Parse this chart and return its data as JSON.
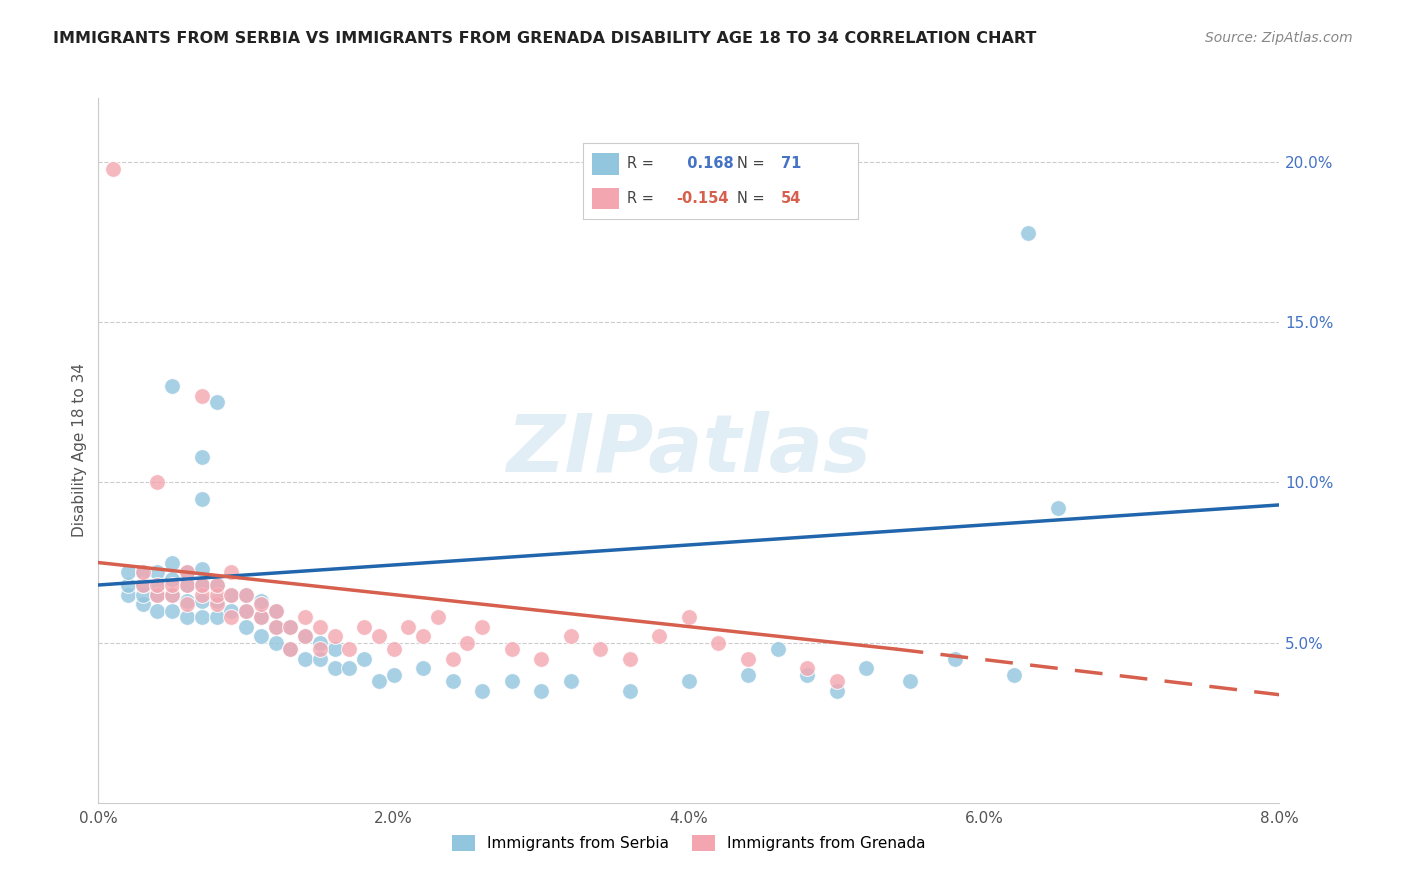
{
  "title": "IMMIGRANTS FROM SERBIA VS IMMIGRANTS FROM GRENADA DISABILITY AGE 18 TO 34 CORRELATION CHART",
  "source": "Source: ZipAtlas.com",
  "ylabel": "Disability Age 18 to 34",
  "xlim": [
    0.0,
    0.08
  ],
  "ylim": [
    0.0,
    0.22
  ],
  "x_tick_labels": [
    "0.0%",
    "2.0%",
    "4.0%",
    "6.0%",
    "8.0%"
  ],
  "x_tick_vals": [
    0.0,
    0.02,
    0.04,
    0.06,
    0.08
  ],
  "y_tick_labels": [
    "5.0%",
    "10.0%",
    "15.0%",
    "20.0%"
  ],
  "y_tick_vals": [
    0.05,
    0.1,
    0.15,
    0.2
  ],
  "serbia_color": "#92c5de",
  "grenada_color": "#f4a6b0",
  "serbia_R": 0.168,
  "serbia_N": 71,
  "grenada_R": -0.154,
  "grenada_N": 54,
  "serbia_line_color": "#2166ac",
  "grenada_line_color": "#d6604d",
  "serbia_line_solid_end": 0.065,
  "grenada_line_solid_end": 0.054,
  "serbia_scatter": [
    [
      0.002,
      0.065
    ],
    [
      0.002,
      0.068
    ],
    [
      0.002,
      0.072
    ],
    [
      0.003,
      0.062
    ],
    [
      0.003,
      0.065
    ],
    [
      0.003,
      0.068
    ],
    [
      0.003,
      0.072
    ],
    [
      0.004,
      0.06
    ],
    [
      0.004,
      0.065
    ],
    [
      0.004,
      0.068
    ],
    [
      0.004,
      0.072
    ],
    [
      0.005,
      0.06
    ],
    [
      0.005,
      0.065
    ],
    [
      0.005,
      0.07
    ],
    [
      0.005,
      0.075
    ],
    [
      0.006,
      0.058
    ],
    [
      0.006,
      0.063
    ],
    [
      0.006,
      0.068
    ],
    [
      0.006,
      0.072
    ],
    [
      0.007,
      0.058
    ],
    [
      0.007,
      0.063
    ],
    [
      0.007,
      0.068
    ],
    [
      0.007,
      0.073
    ],
    [
      0.008,
      0.058
    ],
    [
      0.008,
      0.063
    ],
    [
      0.008,
      0.068
    ],
    [
      0.009,
      0.06
    ],
    [
      0.009,
      0.065
    ],
    [
      0.01,
      0.055
    ],
    [
      0.01,
      0.06
    ],
    [
      0.01,
      0.065
    ],
    [
      0.011,
      0.052
    ],
    [
      0.011,
      0.058
    ],
    [
      0.011,
      0.063
    ],
    [
      0.012,
      0.05
    ],
    [
      0.012,
      0.055
    ],
    [
      0.012,
      0.06
    ],
    [
      0.013,
      0.048
    ],
    [
      0.013,
      0.055
    ],
    [
      0.014,
      0.045
    ],
    [
      0.014,
      0.052
    ],
    [
      0.015,
      0.045
    ],
    [
      0.015,
      0.05
    ],
    [
      0.016,
      0.042
    ],
    [
      0.016,
      0.048
    ],
    [
      0.017,
      0.042
    ],
    [
      0.018,
      0.045
    ],
    [
      0.019,
      0.038
    ],
    [
      0.02,
      0.04
    ],
    [
      0.022,
      0.042
    ],
    [
      0.024,
      0.038
    ],
    [
      0.026,
      0.035
    ],
    [
      0.028,
      0.038
    ],
    [
      0.03,
      0.035
    ],
    [
      0.032,
      0.038
    ],
    [
      0.036,
      0.035
    ],
    [
      0.04,
      0.038
    ],
    [
      0.044,
      0.04
    ],
    [
      0.046,
      0.048
    ],
    [
      0.048,
      0.04
    ],
    [
      0.05,
      0.035
    ],
    [
      0.052,
      0.042
    ],
    [
      0.055,
      0.038
    ],
    [
      0.058,
      0.045
    ],
    [
      0.062,
      0.04
    ],
    [
      0.005,
      0.13
    ],
    [
      0.007,
      0.108
    ],
    [
      0.008,
      0.125
    ],
    [
      0.063,
      0.178
    ],
    [
      0.007,
      0.095
    ],
    [
      0.065,
      0.092
    ]
  ],
  "grenada_scatter": [
    [
      0.001,
      0.198
    ],
    [
      0.003,
      0.068
    ],
    [
      0.003,
      0.072
    ],
    [
      0.004,
      0.1
    ],
    [
      0.004,
      0.065
    ],
    [
      0.004,
      0.068
    ],
    [
      0.005,
      0.065
    ],
    [
      0.005,
      0.068
    ],
    [
      0.006,
      0.062
    ],
    [
      0.006,
      0.068
    ],
    [
      0.006,
      0.072
    ],
    [
      0.007,
      0.065
    ],
    [
      0.007,
      0.068
    ],
    [
      0.007,
      0.127
    ],
    [
      0.008,
      0.062
    ],
    [
      0.008,
      0.065
    ],
    [
      0.008,
      0.068
    ],
    [
      0.009,
      0.058
    ],
    [
      0.009,
      0.065
    ],
    [
      0.009,
      0.072
    ],
    [
      0.01,
      0.06
    ],
    [
      0.01,
      0.065
    ],
    [
      0.011,
      0.058
    ],
    [
      0.011,
      0.062
    ],
    [
      0.012,
      0.055
    ],
    [
      0.012,
      0.06
    ],
    [
      0.013,
      0.048
    ],
    [
      0.013,
      0.055
    ],
    [
      0.014,
      0.052
    ],
    [
      0.014,
      0.058
    ],
    [
      0.015,
      0.048
    ],
    [
      0.015,
      0.055
    ],
    [
      0.016,
      0.052
    ],
    [
      0.017,
      0.048
    ],
    [
      0.018,
      0.055
    ],
    [
      0.019,
      0.052
    ],
    [
      0.02,
      0.048
    ],
    [
      0.021,
      0.055
    ],
    [
      0.022,
      0.052
    ],
    [
      0.023,
      0.058
    ],
    [
      0.024,
      0.045
    ],
    [
      0.025,
      0.05
    ],
    [
      0.026,
      0.055
    ],
    [
      0.028,
      0.048
    ],
    [
      0.03,
      0.045
    ],
    [
      0.032,
      0.052
    ],
    [
      0.034,
      0.048
    ],
    [
      0.036,
      0.045
    ],
    [
      0.038,
      0.052
    ],
    [
      0.04,
      0.058
    ],
    [
      0.042,
      0.05
    ],
    [
      0.044,
      0.045
    ],
    [
      0.048,
      0.042
    ],
    [
      0.05,
      0.038
    ]
  ],
  "serbia_regr": [
    0.0,
    0.08,
    0.068,
    0.093
  ],
  "grenada_regr": [
    0.0,
    0.054,
    0.075,
    0.048
  ],
  "grenada_regr_ext": [
    0.054,
    0.085,
    0.048,
    0.031
  ]
}
